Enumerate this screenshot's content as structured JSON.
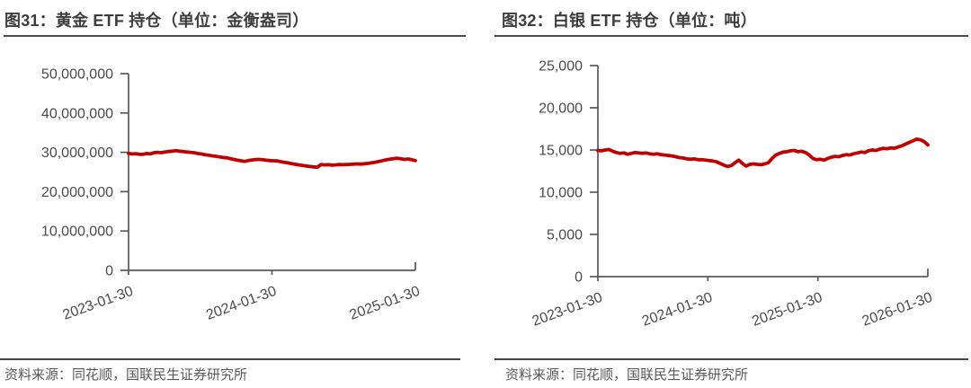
{
  "figures": [
    {
      "title": "图31：黄金 ETF 持仓（单位：金衡盎司）",
      "source": "资料来源：同花顺，国联民生证券研究所"
    },
    {
      "title": "图32：白银 ETF 持仓（单位：吨）",
      "source": "资料来源：同花顺，国联民生证券研究所"
    }
  ],
  "chart_data": [
    {
      "type": "line",
      "title": "黄金 ETF 持仓",
      "unit": "金衡盎司",
      "line_color": "#c00000",
      "axis_color": "#595959",
      "tick_label_color": "#4a4a4a",
      "grid": false,
      "legend": "none",
      "ylim": [
        0,
        50000000
      ],
      "yticks": [
        0,
        10000000,
        20000000,
        30000000,
        40000000,
        50000000
      ],
      "xtick_labels": [
        "2023-01-30",
        "2024-01-30",
        "2025-01-30"
      ],
      "series": [
        {
          "name": "黄金 ETF 持仓",
          "values": [
            29700000,
            29600000,
            29650000,
            29500000,
            29500000,
            29700000,
            29600000,
            29900000,
            30000000,
            29900000,
            30100000,
            30200000,
            30300000,
            30400000,
            30300000,
            30200000,
            30100000,
            30000000,
            29900000,
            29700000,
            29600000,
            29400000,
            29300000,
            29100000,
            29000000,
            28850000,
            28700000,
            28600000,
            28400000,
            28200000,
            28000000,
            27850000,
            27700000,
            27900000,
            28050000,
            28150000,
            28200000,
            28100000,
            28000000,
            27900000,
            27850000,
            27800000,
            27600000,
            27450000,
            27300000,
            27100000,
            26950000,
            26800000,
            26650000,
            26500000,
            26400000,
            26300000,
            26200000,
            26900000,
            26800000,
            26850000,
            26750000,
            26800000,
            26900000,
            26850000,
            26900000,
            26950000,
            27000000,
            27050000,
            27000000,
            27100000,
            27200000,
            27350000,
            27500000,
            27700000,
            27900000,
            28100000,
            28250000,
            28400000,
            28500000,
            28350000,
            28200000,
            28300000,
            28100000,
            27900000
          ]
        }
      ]
    },
    {
      "type": "line",
      "title": "白银 ETF 持仓",
      "unit": "吨",
      "line_color": "#c00000",
      "axis_color": "#595959",
      "tick_label_color": "#4a4a4a",
      "grid": false,
      "legend": "none",
      "ylim": [
        0,
        25000
      ],
      "yticks": [
        0,
        5000,
        10000,
        15000,
        20000,
        25000
      ],
      "xtick_labels": [
        "2023-01-30",
        "2024-01-30",
        "2025-01-30",
        "2026-01-30"
      ],
      "series": [
        {
          "name": "白银 ETF 持仓",
          "values": [
            14950,
            14900,
            15000,
            15050,
            14850,
            14700,
            14600,
            14650,
            14500,
            14600,
            14700,
            14650,
            14600,
            14650,
            14550,
            14500,
            14550,
            14450,
            14400,
            14350,
            14300,
            14200,
            14100,
            14050,
            13950,
            13900,
            13950,
            13850,
            13850,
            13800,
            13750,
            13700,
            13600,
            13400,
            13200,
            13050,
            13150,
            13500,
            13800,
            13400,
            13100,
            13300,
            13350,
            13300,
            13250,
            13350,
            13500,
            14000,
            14400,
            14600,
            14750,
            14800,
            14900,
            14950,
            14800,
            14850,
            14700,
            14400,
            14000,
            13850,
            13900,
            13800,
            14000,
            14150,
            14250,
            14200,
            14350,
            14450,
            14400,
            14550,
            14650,
            14750,
            14700,
            14900,
            15000,
            14950,
            15100,
            15200,
            15150,
            15250,
            15200,
            15350,
            15500,
            15700,
            15900,
            16100,
            16300,
            16200,
            16000,
            15600
          ]
        }
      ]
    }
  ]
}
